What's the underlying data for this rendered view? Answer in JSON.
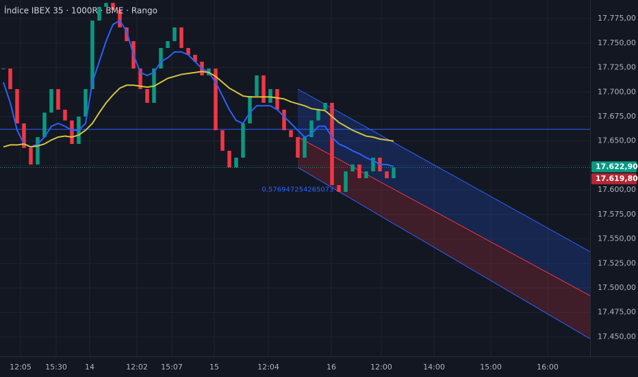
{
  "chart_data": {
    "type": "candlestick",
    "title": "Índice IBEX 35 · 1000R · BME · Rango",
    "colors": {
      "up": "#089981",
      "down": "#f23645"
    },
    "values": [
      17724,
      17703,
      17668,
      17643,
      17626,
      17654,
      17679,
      17703,
      17682,
      17671,
      17647,
      17675,
      17703,
      17773,
      17787,
      17791,
      17784,
      17766,
      17752,
      17724,
      17703,
      17689,
      17724,
      17745,
      17752,
      17766,
      17745,
      17738,
      17731,
      17717,
      17724,
      17661,
      17640,
      17623,
      17633,
      17668,
      17696,
      17717,
      17689,
      17703,
      17682,
      17661,
      17654,
      17633,
      17654,
      17671,
      17682,
      17689,
      17605,
      17598,
      17619,
      17626,
      17612,
      17619,
      17633,
      17619,
      17612,
      17623
    ],
    "series": [
      {
        "color": "#2962ff",
        "values": [
          17710,
          17689,
          17661,
          17647,
          17644,
          17647,
          17654,
          17665,
          17668,
          17665,
          17661,
          17661,
          17668,
          17710,
          17731,
          17752,
          17769,
          17773,
          17762,
          17738,
          17720,
          17717,
          17720,
          17731,
          17735,
          17741,
          17741,
          17738,
          17731,
          17724,
          17720,
          17710,
          17696,
          17682,
          17671,
          17668,
          17679,
          17686,
          17686,
          17686,
          17682,
          17675,
          17668,
          17661,
          17654,
          17657,
          17665,
          17665,
          17654,
          17647,
          17644,
          17640,
          17637,
          17633,
          17630,
          17626,
          17626,
          17624
        ]
      },
      {
        "color": "#d4c640",
        "values": [
          17644,
          17646,
          17646,
          17647,
          17644,
          17645,
          17647,
          17651,
          17654,
          17655,
          17654,
          17656,
          17661,
          17668,
          17679,
          17689,
          17697,
          17704,
          17707,
          17707,
          17706,
          17705,
          17706,
          17710,
          17714,
          17716,
          17718,
          17719,
          17720,
          17721,
          17720,
          17716,
          17710,
          17704,
          17700,
          17696,
          17695,
          17695,
          17695,
          17695,
          17694,
          17693,
          17690,
          17688,
          17686,
          17683,
          17682,
          17681,
          17675,
          17669,
          17665,
          17661,
          17658,
          17655,
          17654,
          17652,
          17651,
          17650
        ]
      }
    ],
    "hline": {
      "value": 17662,
      "color": "#2962ff"
    },
    "channel": {
      "x": [
        43,
        85.7
      ],
      "upper": [
        17703,
        17537
      ],
      "middle": [
        17654,
        17492
      ],
      "lower": [
        17623,
        17448
      ],
      "upper_color": "#2962ff",
      "middle_color": "#f23645"
    },
    "annotation": "0.576947254265073",
    "price_labels": [
      {
        "value": 17622.9,
        "label": "17.622,90",
        "color": "#089981"
      },
      {
        "value": 17619.8,
        "label": "17.619,80",
        "color": "#b22833"
      }
    ],
    "xlim": [
      -0.5,
      85.7
    ],
    "xticks": [
      {
        "value": 2.5,
        "label": "12:05"
      },
      {
        "value": 7.7,
        "label": "15:30"
      },
      {
        "value": 12.6,
        "label": "14"
      },
      {
        "value": 19.5,
        "label": "12:02"
      },
      {
        "value": 24.6,
        "label": "15:07"
      },
      {
        "value": 30.8,
        "label": "15"
      },
      {
        "value": 38.7,
        "label": "12:04"
      },
      {
        "value": 47.9,
        "label": "16"
      },
      {
        "value": 55.2,
        "label": "12:00"
      },
      {
        "value": 62.9,
        "label": "14:00"
      },
      {
        "value": 71.2,
        "label": "15:00"
      },
      {
        "value": 79.5,
        "label": "16:00"
      }
    ],
    "ylim": [
      17430,
      17794
    ],
    "yticks": [
      {
        "value": 17450,
        "label": "17.450,00"
      },
      {
        "value": 17475,
        "label": "17.475,00"
      },
      {
        "value": 17500,
        "label": "17.500,00"
      },
      {
        "value": 17525,
        "label": "17.525,00"
      },
      {
        "value": 17550,
        "label": "17.550,00"
      },
      {
        "value": 17575,
        "label": "17.575,00"
      },
      {
        "value": 17600,
        "label": "17.600,00"
      },
      {
        "value": 17625,
        "label": "17.625,00"
      },
      {
        "value": 17650,
        "label": "17.650,00"
      },
      {
        "value": 17675,
        "label": "17.675,00"
      },
      {
        "value": 17700,
        "label": "17.700,00"
      },
      {
        "value": 17725,
        "label": "17.725,00"
      },
      {
        "value": 17750,
        "label": "17.750,00"
      },
      {
        "value": 17775,
        "label": "17.775,00"
      }
    ],
    "grid": true
  }
}
